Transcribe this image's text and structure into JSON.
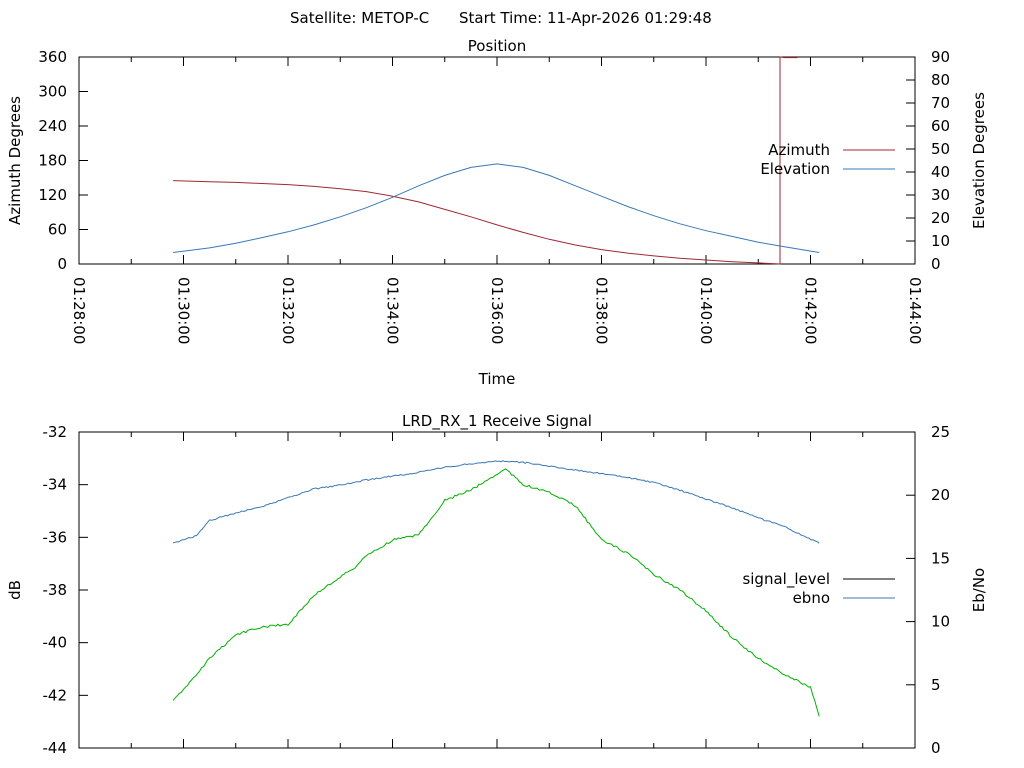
{
  "header": {
    "satellite": "Satellite: METOP-C",
    "start_time": "Start Time: 11-Apr-2026 01:29:48"
  },
  "chart_data": [
    {
      "type": "line",
      "title": "Position",
      "xlabel": "Time",
      "ylabel": "Azimuth Degrees",
      "y2label": "Elevation Degrees",
      "xlim": [
        "01:28:00",
        "01:44:00"
      ],
      "x_ticks": [
        "01:28:00",
        "01:30:00",
        "01:32:00",
        "01:34:00",
        "01:36:00",
        "01:38:00",
        "01:40:00",
        "01:42:00",
        "01:44:00"
      ],
      "ylim": [
        0,
        360
      ],
      "y_ticks": [
        "0",
        "60",
        "120",
        "180",
        "240",
        "300",
        "360"
      ],
      "y2lim": [
        0,
        90
      ],
      "y2_ticks": [
        "0",
        "10",
        "20",
        "30",
        "40",
        "50",
        "60",
        "70",
        "80",
        "90"
      ],
      "legend_position": "right",
      "grid": false,
      "series": [
        {
          "name": "Azimuth",
          "axis": "left",
          "color": "#a02830",
          "x": [
            "01:29:48",
            "01:30:30",
            "01:31:00",
            "01:31:30",
            "01:32:00",
            "01:32:30",
            "01:33:00",
            "01:33:30",
            "01:34:00",
            "01:34:30",
            "01:35:00",
            "01:35:30",
            "01:36:00",
            "01:36:30",
            "01:37:00",
            "01:37:30",
            "01:38:00",
            "01:38:30",
            "01:39:00",
            "01:39:30",
            "01:40:00",
            "01:40:30",
            "01:41:00",
            "01:41:20",
            "01:41:25",
            "01:41:25",
            "01:41:30",
            "01:41:45"
          ],
          "values": [
            145,
            143,
            142,
            140,
            138,
            135,
            131,
            126,
            118,
            108,
            95,
            82,
            68,
            55,
            43,
            33,
            25,
            19,
            14,
            10,
            7,
            4,
            2,
            0.5,
            0,
            360,
            359,
            359
          ]
        },
        {
          "name": "Elevation",
          "axis": "right",
          "color": "#3a78b5",
          "x": [
            "01:29:48",
            "01:30:30",
            "01:31:00",
            "01:31:30",
            "01:32:00",
            "01:32:30",
            "01:33:00",
            "01:33:30",
            "01:34:00",
            "01:34:30",
            "01:35:00",
            "01:35:30",
            "01:36:00",
            "01:36:30",
            "01:37:00",
            "01:37:30",
            "01:38:00",
            "01:38:30",
            "01:39:00",
            "01:39:30",
            "01:40:00",
            "01:40:30",
            "01:41:00",
            "01:41:30",
            "01:42:10"
          ],
          "values": [
            5,
            7,
            9,
            11.5,
            14,
            17,
            20.5,
            24.5,
            29,
            34,
            38.5,
            42,
            43.5,
            42,
            38.5,
            34,
            29.5,
            25,
            21,
            17.5,
            14.5,
            12,
            9.5,
            7.5,
            5
          ]
        }
      ]
    },
    {
      "type": "line",
      "title": "LRD_RX_1 Receive Signal",
      "xlabel": "",
      "ylabel": "dB",
      "y2label": "Eb/No",
      "xlim": [
        "01:28:00",
        "01:44:00"
      ],
      "ylim": [
        -44,
        -32
      ],
      "y_ticks": [
        "-44",
        "-42",
        "-40",
        "-38",
        "-36",
        "-34",
        "-32"
      ],
      "y2lim": [
        0,
        25
      ],
      "y2_ticks": [
        "0",
        "5",
        "10",
        "15",
        "20",
        "25"
      ],
      "legend_position": "right",
      "grid": false,
      "series": [
        {
          "name": "signal_level",
          "axis": "left",
          "color": "#000000",
          "plotted_color": "#00b000",
          "x": [
            "01:29:48",
            "01:30:00",
            "01:30:30",
            "01:31:00",
            "01:31:30",
            "01:32:00",
            "01:32:30",
            "01:33:00",
            "01:33:15",
            "01:33:30",
            "01:34:00",
            "01:34:30",
            "01:35:00",
            "01:35:30",
            "01:36:00",
            "01:36:10",
            "01:36:30",
            "01:37:00",
            "01:37:30",
            "01:38:00",
            "01:38:30",
            "01:39:00",
            "01:39:30",
            "01:40:00",
            "01:40:30",
            "01:41:00",
            "01:41:30",
            "01:42:00",
            "01:42:10"
          ],
          "values": [
            -42.2,
            -41.8,
            -40.6,
            -39.7,
            -39.4,
            -39.3,
            -38.2,
            -37.5,
            -37.2,
            -36.7,
            -36.1,
            -35.9,
            -34.6,
            -34.2,
            -33.6,
            -33.4,
            -34.0,
            -34.3,
            -34.8,
            -36.1,
            -36.6,
            -37.4,
            -38.0,
            -38.8,
            -39.8,
            -40.6,
            -41.2,
            -41.7,
            -42.8
          ]
        },
        {
          "name": "ebno",
          "axis": "right",
          "color": "#3a78b5",
          "x": [
            "01:29:48",
            "01:30:15",
            "01:30:30",
            "01:31:00",
            "01:31:30",
            "01:32:00",
            "01:32:30",
            "01:33:00",
            "01:33:30",
            "01:34:00",
            "01:34:30",
            "01:35:00",
            "01:35:30",
            "01:36:00",
            "01:36:30",
            "01:37:00",
            "01:37:30",
            "01:38:00",
            "01:38:30",
            "01:39:00",
            "01:39:30",
            "01:40:00",
            "01:40:30",
            "01:41:00",
            "01:41:30",
            "01:42:10"
          ],
          "values": [
            16.2,
            16.8,
            18.0,
            18.6,
            19.1,
            19.8,
            20.5,
            20.8,
            21.2,
            21.5,
            21.8,
            22.2,
            22.5,
            22.7,
            22.6,
            22.3,
            22.0,
            21.7,
            21.4,
            21.0,
            20.4,
            19.7,
            19.0,
            18.2,
            17.5,
            16.2
          ]
        }
      ]
    }
  ]
}
